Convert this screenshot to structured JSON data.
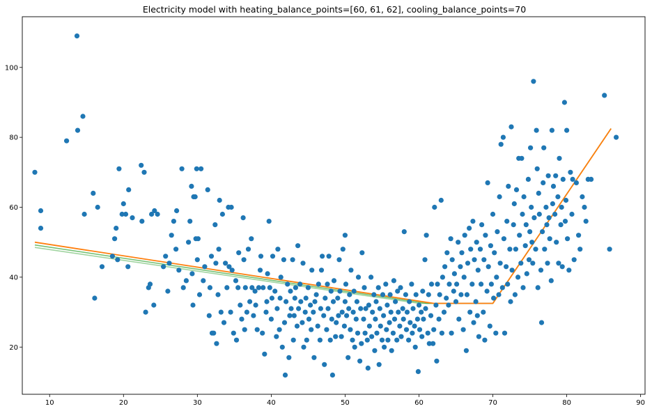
{
  "chart_data": {
    "type": "scatter",
    "title": "Electricity model with heating_balance_points=[60, 61, 62], cooling_balance_points=70",
    "xlabel": "",
    "ylabel": "",
    "xlim": [
      6.3,
      90.6
    ],
    "ylim": [
      6.5,
      114.5
    ],
    "xticks": [
      10,
      20,
      30,
      40,
      50,
      60,
      70,
      80,
      90
    ],
    "yticks": [
      20,
      40,
      60,
      80,
      100
    ],
    "grid": false,
    "legend": "none",
    "colors": {
      "scatter": "#1f77b4",
      "fit_62": "#ff7f0e",
      "fit_61": "#2ca02c",
      "fit_60": "#2ca02c"
    },
    "scatter_points": [
      [
        8,
        70
      ],
      [
        8.8,
        59
      ],
      [
        8.8,
        54
      ],
      [
        12.3,
        79
      ],
      [
        13.7,
        109
      ],
      [
        13.8,
        82
      ],
      [
        14.5,
        86
      ],
      [
        14.7,
        58
      ],
      [
        15.9,
        64
      ],
      [
        16.1,
        34
      ],
      [
        16.5,
        60
      ],
      [
        17.1,
        43
      ],
      [
        18.5,
        46
      ],
      [
        18.8,
        51
      ],
      [
        19,
        54
      ],
      [
        19.2,
        45
      ],
      [
        19.4,
        71
      ],
      [
        19.8,
        58
      ],
      [
        20,
        61
      ],
      [
        20.3,
        58
      ],
      [
        20.6,
        43
      ],
      [
        20.7,
        65
      ],
      [
        21.2,
        57
      ],
      [
        22.4,
        72
      ],
      [
        22.5,
        56
      ],
      [
        22.8,
        70
      ],
      [
        23,
        30
      ],
      [
        23.4,
        37
      ],
      [
        23.6,
        38
      ],
      [
        23.8,
        58
      ],
      [
        24.1,
        32
      ],
      [
        24.2,
        59
      ],
      [
        24.6,
        58
      ],
      [
        25.4,
        43
      ],
      [
        25.7,
        46
      ],
      [
        26,
        36
      ],
      [
        26.2,
        44
      ],
      [
        26.5,
        52
      ],
      [
        26.8,
        56
      ],
      [
        27.1,
        48
      ],
      [
        27.2,
        59
      ],
      [
        27.5,
        42
      ],
      [
        27.9,
        71
      ],
      [
        28.1,
        37
      ],
      [
        28.5,
        39
      ],
      [
        28.8,
        50
      ],
      [
        29,
        56
      ],
      [
        29.2,
        66
      ],
      [
        29.3,
        41
      ],
      [
        29.4,
        32
      ],
      [
        29.5,
        63
      ],
      [
        29.7,
        63
      ],
      [
        29.8,
        51
      ],
      [
        29.9,
        71
      ],
      [
        30,
        45
      ],
      [
        30.1,
        51
      ],
      [
        30.3,
        35
      ],
      [
        30.5,
        71
      ],
      [
        30.8,
        39
      ],
      [
        31,
        43
      ],
      [
        31.4,
        65
      ],
      [
        31.6,
        29
      ],
      [
        31.7,
        37
      ],
      [
        31.9,
        46
      ],
      [
        32,
        24
      ],
      [
        32.2,
        24
      ],
      [
        32.4,
        55
      ],
      [
        32.5,
        44
      ],
      [
        32.6,
        21
      ],
      [
        32.8,
        35
      ],
      [
        32.9,
        48
      ],
      [
        33,
        62
      ],
      [
        33.2,
        30
      ],
      [
        33.4,
        58
      ],
      [
        33.6,
        27
      ],
      [
        33.8,
        44
      ],
      [
        34,
        37
      ],
      [
        34.2,
        60
      ],
      [
        34.3,
        43
      ],
      [
        34.5,
        30
      ],
      [
        34.6,
        60
      ],
      [
        34.7,
        42
      ],
      [
        34.9,
        24
      ],
      [
        35.2,
        39
      ],
      [
        35.3,
        22
      ],
      [
        35.5,
        37
      ],
      [
        35.6,
        47
      ],
      [
        35.8,
        32
      ],
      [
        36,
        28
      ],
      [
        36.2,
        57
      ],
      [
        36.3,
        45
      ],
      [
        36.4,
        25
      ],
      [
        36.5,
        37
      ],
      [
        36.7,
        30
      ],
      [
        36.9,
        48
      ],
      [
        37.1,
        33
      ],
      [
        37.3,
        51
      ],
      [
        37.4,
        37
      ],
      [
        37.6,
        29
      ],
      [
        37.8,
        36
      ],
      [
        37.9,
        32
      ],
      [
        38.1,
        25
      ],
      [
        38.3,
        37
      ],
      [
        38.5,
        42
      ],
      [
        38.6,
        46
      ],
      [
        38.8,
        24
      ],
      [
        38.9,
        37
      ],
      [
        39.1,
        18
      ],
      [
        39.3,
        30
      ],
      [
        39.4,
        33
      ],
      [
        39.5,
        41
      ],
      [
        39.7,
        56
      ],
      [
        39.8,
        37
      ],
      [
        40,
        28
      ],
      [
        40.1,
        34
      ],
      [
        40.2,
        46
      ],
      [
        40.5,
        36
      ],
      [
        40.7,
        23
      ],
      [
        40.8,
        31
      ],
      [
        40.9,
        48
      ],
      [
        41.1,
        25
      ],
      [
        41.2,
        34
      ],
      [
        41.3,
        40
      ],
      [
        41.5,
        20
      ],
      [
        41.7,
        45
      ],
      [
        41.8,
        27
      ],
      [
        41.9,
        12
      ],
      [
        42,
        33
      ],
      [
        42.2,
        38
      ],
      [
        42.4,
        17
      ],
      [
        42.5,
        29
      ],
      [
        42.6,
        36
      ],
      [
        42.7,
        31
      ],
      [
        42.9,
        45
      ],
      [
        43,
        22
      ],
      [
        43.1,
        29
      ],
      [
        43.2,
        34
      ],
      [
        43.3,
        37
      ],
      [
        43.5,
        26
      ],
      [
        43.6,
        49
      ],
      [
        43.7,
        31
      ],
      [
        43.9,
        38
      ],
      [
        44,
        33
      ],
      [
        44.2,
        27
      ],
      [
        44.3,
        44
      ],
      [
        44.4,
        20
      ],
      [
        44.6,
        30
      ],
      [
        44.7,
        34
      ],
      [
        44.8,
        22
      ],
      [
        45,
        37
      ],
      [
        45.1,
        28
      ],
      [
        45.3,
        32
      ],
      [
        45.4,
        25
      ],
      [
        45.5,
        42
      ],
      [
        45.7,
        30
      ],
      [
        45.8,
        17
      ],
      [
        45.9,
        33
      ],
      [
        46.1,
        35
      ],
      [
        46.3,
        26
      ],
      [
        46.4,
        38
      ],
      [
        46.6,
        22
      ],
      [
        46.7,
        31
      ],
      [
        46.8,
        42
      ],
      [
        46.9,
        46
      ],
      [
        47.1,
        29
      ],
      [
        47.2,
        15
      ],
      [
        47.3,
        34
      ],
      [
        47.5,
        25
      ],
      [
        47.6,
        38
      ],
      [
        47.7,
        31
      ],
      [
        47.8,
        46
      ],
      [
        48,
        22
      ],
      [
        48.1,
        36
      ],
      [
        48.2,
        28
      ],
      [
        48.3,
        12
      ],
      [
        48.4,
        33
      ],
      [
        48.5,
        39
      ],
      [
        48.7,
        23
      ],
      [
        48.8,
        27
      ],
      [
        49,
        34
      ],
      [
        49.1,
        29
      ],
      [
        49.2,
        45
      ],
      [
        49.3,
        36
      ],
      [
        49.5,
        23
      ],
      [
        49.6,
        30
      ],
      [
        49.7,
        48
      ],
      [
        49.9,
        26
      ],
      [
        50,
        33
      ],
      [
        50,
        52
      ],
      [
        50.1,
        38
      ],
      [
        50.2,
        29
      ],
      [
        50.4,
        17
      ],
      [
        50.5,
        31
      ],
      [
        50.6,
        35
      ],
      [
        50.7,
        25
      ],
      [
        50.8,
        42
      ],
      [
        51,
        22
      ],
      [
        51.1,
        30
      ],
      [
        51.2,
        36
      ],
      [
        51.3,
        20
      ],
      [
        51.5,
        28
      ],
      [
        51.6,
        33
      ],
      [
        51.7,
        24
      ],
      [
        51.8,
        40
      ],
      [
        52,
        16
      ],
      [
        52.1,
        31
      ],
      [
        52.2,
        21
      ],
      [
        52.3,
        47
      ],
      [
        52.5,
        28
      ],
      [
        52.6,
        37
      ],
      [
        52.7,
        24
      ],
      [
        52.8,
        31
      ],
      [
        53,
        22
      ],
      [
        53.1,
        14
      ],
      [
        53.2,
        32
      ],
      [
        53.3,
        26
      ],
      [
        53.5,
        40
      ],
      [
        53.6,
        23
      ],
      [
        53.7,
        30
      ],
      [
        53.9,
        35
      ],
      [
        54,
        19
      ],
      [
        54.1,
        28
      ],
      [
        54.2,
        33
      ],
      [
        54.3,
        24
      ],
      [
        54.5,
        37
      ],
      [
        54.6,
        15
      ],
      [
        54.7,
        31
      ],
      [
        54.8,
        26
      ],
      [
        55,
        22
      ],
      [
        55.1,
        35
      ],
      [
        55.2,
        29
      ],
      [
        55.3,
        20
      ],
      [
        55.5,
        38
      ],
      [
        55.6,
        25
      ],
      [
        55.7,
        32
      ],
      [
        55.8,
        22
      ],
      [
        56,
        27
      ],
      [
        56.1,
        35
      ],
      [
        56.2,
        30
      ],
      [
        56.3,
        19
      ],
      [
        56.5,
        24
      ],
      [
        56.6,
        39
      ],
      [
        56.7,
        28
      ],
      [
        56.8,
        33
      ],
      [
        57,
        22
      ],
      [
        57.1,
        36
      ],
      [
        57.2,
        30
      ],
      [
        57.4,
        26
      ],
      [
        57.5,
        37
      ],
      [
        57.6,
        23
      ],
      [
        57.8,
        31
      ],
      [
        57.9,
        28
      ],
      [
        58,
        53
      ],
      [
        58.2,
        35
      ],
      [
        58.3,
        25
      ],
      [
        58.4,
        30
      ],
      [
        58.6,
        22
      ],
      [
        58.7,
        33
      ],
      [
        58.8,
        27
      ],
      [
        59,
        38
      ],
      [
        59.1,
        24
      ],
      [
        59.2,
        31
      ],
      [
        59.4,
        26
      ],
      [
        59.5,
        20
      ],
      [
        59.6,
        35
      ],
      [
        59.8,
        28
      ],
      [
        59.9,
        13
      ],
      [
        60,
        32
      ],
      [
        60.1,
        25
      ],
      [
        60.3,
        30
      ],
      [
        60.4,
        23
      ],
      [
        60.5,
        36
      ],
      [
        60.6,
        28
      ],
      [
        60.8,
        45
      ],
      [
        60.9,
        31
      ],
      [
        61,
        52
      ],
      [
        61.2,
        24
      ],
      [
        61.3,
        35
      ],
      [
        61.4,
        21
      ],
      [
        61.6,
        29
      ],
      [
        61.7,
        38
      ],
      [
        61.9,
        21
      ],
      [
        62,
        25
      ],
      [
        62.1,
        60
      ],
      [
        62.3,
        32
      ],
      [
        62.4,
        16
      ],
      [
        62.5,
        38
      ],
      [
        62.7,
        28
      ],
      [
        62.8,
        35
      ],
      [
        63,
        62
      ],
      [
        63.1,
        24
      ],
      [
        63.2,
        40
      ],
      [
        63.4,
        30
      ],
      [
        63.5,
        43
      ],
      [
        63.7,
        34
      ],
      [
        63.8,
        47
      ],
      [
        64,
        32
      ],
      [
        64.1,
        38
      ],
      [
        64.3,
        51
      ],
      [
        64.4,
        24
      ],
      [
        64.5,
        45
      ],
      [
        64.7,
        36
      ],
      [
        64.8,
        41
      ],
      [
        65,
        33
      ],
      [
        65.1,
        38
      ],
      [
        65.3,
        50
      ],
      [
        65.4,
        28
      ],
      [
        65.6,
        43
      ],
      [
        65.7,
        35
      ],
      [
        65.8,
        47
      ],
      [
        66,
        25
      ],
      [
        66.1,
        40
      ],
      [
        66.2,
        52
      ],
      [
        66.4,
        19
      ],
      [
        66.5,
        35
      ],
      [
        66.6,
        44
      ],
      [
        66.8,
        54
      ],
      [
        66.9,
        30
      ],
      [
        67,
        48
      ],
      [
        67.2,
        38
      ],
      [
        67.3,
        56
      ],
      [
        67.4,
        27
      ],
      [
        67.5,
        45
      ],
      [
        67.7,
        33
      ],
      [
        67.8,
        50
      ],
      [
        67.9,
        29
      ],
      [
        68,
        42
      ],
      [
        68.1,
        23
      ],
      [
        68.3,
        48
      ],
      [
        68.4,
        38
      ],
      [
        68.5,
        55
      ],
      [
        68.7,
        30
      ],
      [
        68.8,
        45
      ],
      [
        68.9,
        22
      ],
      [
        69,
        52
      ],
      [
        69.2,
        36
      ],
      [
        69.3,
        67
      ],
      [
        69.4,
        43
      ],
      [
        69.6,
        26
      ],
      [
        69.7,
        49
      ],
      [
        69.8,
        38
      ],
      [
        70,
        58
      ],
      [
        70.1,
        34
      ],
      [
        70.2,
        47
      ],
      [
        70.4,
        24
      ],
      [
        70.5,
        40
      ],
      [
        70.6,
        53
      ],
      [
        70.8,
        35
      ],
      [
        70.9,
        63
      ],
      [
        71,
        44
      ],
      [
        71.1,
        78
      ],
      [
        71.3,
        37
      ],
      [
        71.4,
        80
      ],
      [
        71.5,
        51
      ],
      [
        71.6,
        24
      ],
      [
        71.8,
        43
      ],
      [
        71.9,
        56
      ],
      [
        72,
        38
      ],
      [
        72.1,
        66
      ],
      [
        72.3,
        48
      ],
      [
        72.4,
        33
      ],
      [
        72.5,
        83
      ],
      [
        72.6,
        42
      ],
      [
        72.8,
        55
      ],
      [
        72.9,
        61
      ],
      [
        73,
        35
      ],
      [
        73.1,
        48
      ],
      [
        73.2,
        65
      ],
      [
        73.4,
        40
      ],
      [
        73.5,
        74
      ],
      [
        73.6,
        52
      ],
      [
        73.8,
        44
      ],
      [
        73.9,
        74
      ],
      [
        74,
        58
      ],
      [
        74.1,
        37
      ],
      [
        74.2,
        63
      ],
      [
        74.4,
        49
      ],
      [
        74.5,
        55
      ],
      [
        74.6,
        41
      ],
      [
        74.8,
        68
      ],
      [
        74.9,
        45
      ],
      [
        75,
        53
      ],
      [
        75.1,
        77
      ],
      [
        75.2,
        60
      ],
      [
        75.3,
        50
      ],
      [
        75.4,
        44
      ],
      [
        75.5,
        96
      ],
      [
        75.6,
        57
      ],
      [
        75.8,
        48
      ],
      [
        75.9,
        82
      ],
      [
        76,
        71
      ],
      [
        76.1,
        37
      ],
      [
        76.2,
        64
      ],
      [
        76.3,
        58
      ],
      [
        76.5,
        42
      ],
      [
        76.6,
        27
      ],
      [
        76.7,
        53
      ],
      [
        76.8,
        67
      ],
      [
        76.9,
        77
      ],
      [
        77,
        48
      ],
      [
        77.2,
        60
      ],
      [
        77.3,
        55
      ],
      [
        77.4,
        44
      ],
      [
        77.5,
        69
      ],
      [
        77.6,
        57
      ],
      [
        77.7,
        51
      ],
      [
        77.9,
        39
      ],
      [
        78,
        82
      ],
      [
        78.1,
        61
      ],
      [
        78.2,
        66
      ],
      [
        78.4,
        58
      ],
      [
        78.5,
        69
      ],
      [
        78.6,
        50
      ],
      [
        78.8,
        63
      ],
      [
        78.9,
        44
      ],
      [
        79,
        74
      ],
      [
        79.2,
        55
      ],
      [
        79.3,
        60
      ],
      [
        79.4,
        43
      ],
      [
        79.5,
        68
      ],
      [
        79.7,
        90
      ],
      [
        79.8,
        56
      ],
      [
        79.9,
        62
      ],
      [
        80,
        82
      ],
      [
        80.1,
        51
      ],
      [
        80.3,
        42
      ],
      [
        80.5,
        70
      ],
      [
        80.7,
        58
      ],
      [
        80.8,
        68
      ],
      [
        81,
        45
      ],
      [
        81.3,
        67
      ],
      [
        81.6,
        52
      ],
      [
        81.8,
        48
      ],
      [
        82.1,
        63
      ],
      [
        82.4,
        60
      ],
      [
        82.6,
        56
      ],
      [
        82.9,
        68
      ],
      [
        83.3,
        68
      ],
      [
        85.1,
        92
      ],
      [
        85.8,
        48
      ],
      [
        86.7,
        80
      ]
    ],
    "series": [
      {
        "values": [
          [
            8,
            48.5
          ],
          [
            60,
            32.5
          ],
          [
            70,
            32.5
          ],
          [
            86,
            82.5
          ]
        ]
      },
      {
        "values": [
          [
            8,
            49.2
          ],
          [
            61,
            32.5
          ],
          [
            70,
            32.5
          ],
          [
            86,
            82.5
          ]
        ]
      },
      {
        "values": [
          [
            8,
            50
          ],
          [
            62,
            32.5
          ],
          [
            70,
            32.5
          ],
          [
            86,
            82.5
          ]
        ]
      }
    ]
  }
}
